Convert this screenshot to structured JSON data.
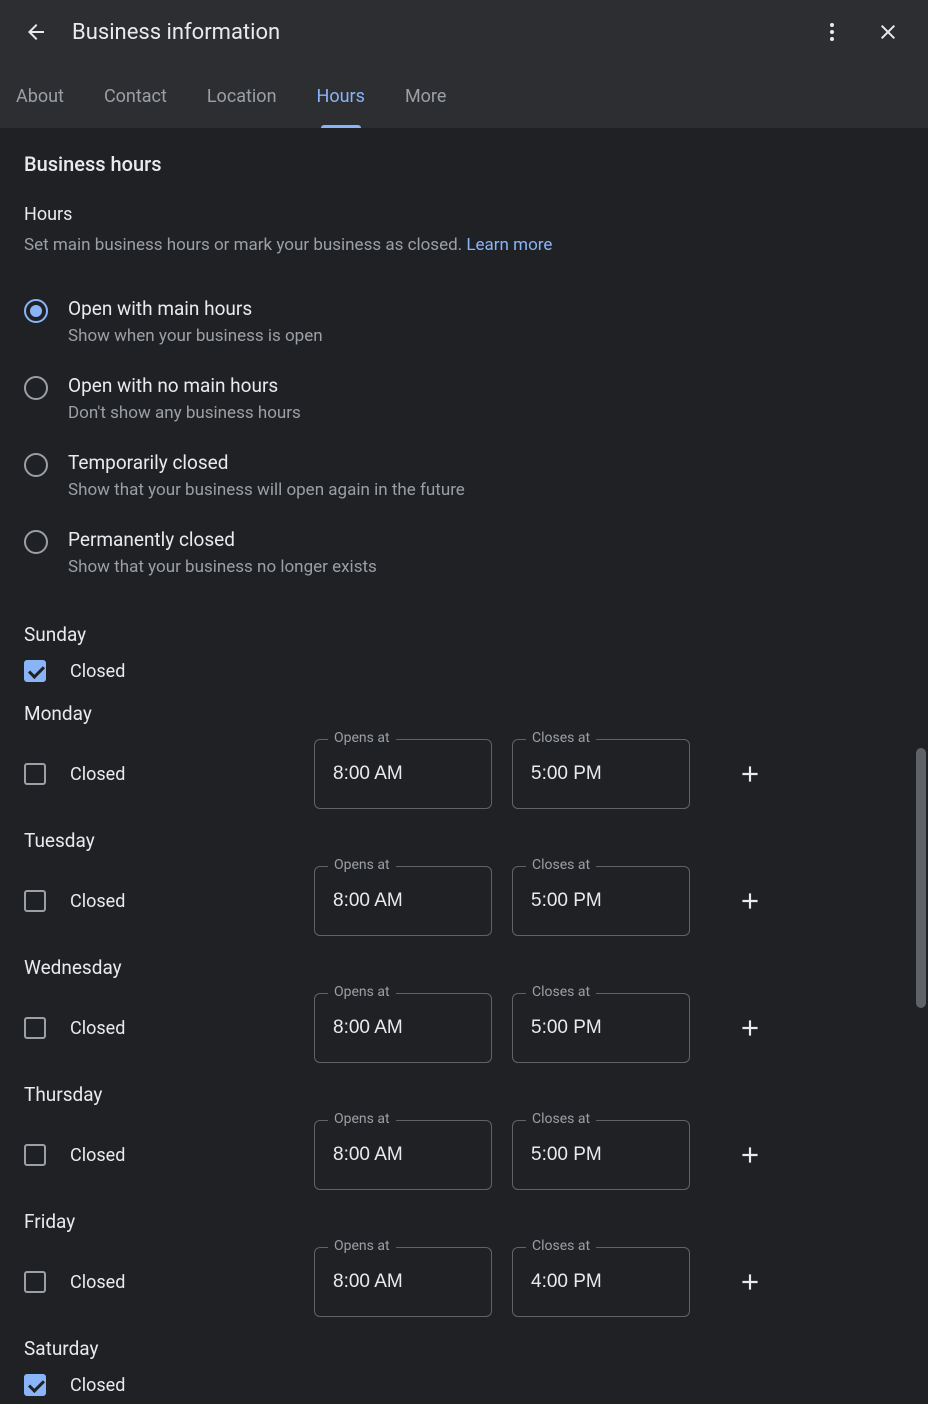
{
  "header": {
    "title": "Business information"
  },
  "tabs": [
    {
      "label": "About",
      "active": false
    },
    {
      "label": "Contact",
      "active": false
    },
    {
      "label": "Location",
      "active": false
    },
    {
      "label": "Hours",
      "active": true
    },
    {
      "label": "More",
      "active": false
    }
  ],
  "section": {
    "title": "Business hours",
    "subtitle": "Hours",
    "description": "Set main business hours or mark your business as closed. ",
    "learn_more": "Learn more"
  },
  "radio_options": [
    {
      "label": "Open with main hours",
      "desc": "Show when your business is open",
      "selected": true
    },
    {
      "label": "Open with no main hours",
      "desc": "Don't show any business hours",
      "selected": false
    },
    {
      "label": "Temporarily closed",
      "desc": "Show that your business will open again in the future",
      "selected": false
    },
    {
      "label": "Permanently closed",
      "desc": "Show that your business no longer exists",
      "selected": false
    }
  ],
  "field_labels": {
    "opens": "Opens at",
    "closes": "Closes at",
    "closed": "Closed"
  },
  "days": [
    {
      "name": "Sunday",
      "closed": true,
      "opens": "",
      "closes": ""
    },
    {
      "name": "Monday",
      "closed": false,
      "opens": "8:00 AM",
      "closes": "5:00 PM"
    },
    {
      "name": "Tuesday",
      "closed": false,
      "opens": "8:00 AM",
      "closes": "5:00 PM"
    },
    {
      "name": "Wednesday",
      "closed": false,
      "opens": "8:00 AM",
      "closes": "5:00 PM"
    },
    {
      "name": "Thursday",
      "closed": false,
      "opens": "8:00 AM",
      "closes": "5:00 PM"
    },
    {
      "name": "Friday",
      "closed": false,
      "opens": "8:00 AM",
      "closes": "4:00 PM"
    },
    {
      "name": "Saturday",
      "closed": true,
      "opens": "",
      "closes": ""
    }
  ],
  "colors": {
    "background": "#202124",
    "header_bg": "#2d2e31",
    "text_primary": "#e8eaed",
    "text_secondary": "#9aa0a6",
    "accent": "#8ab4f8",
    "border": "#5f6368"
  }
}
